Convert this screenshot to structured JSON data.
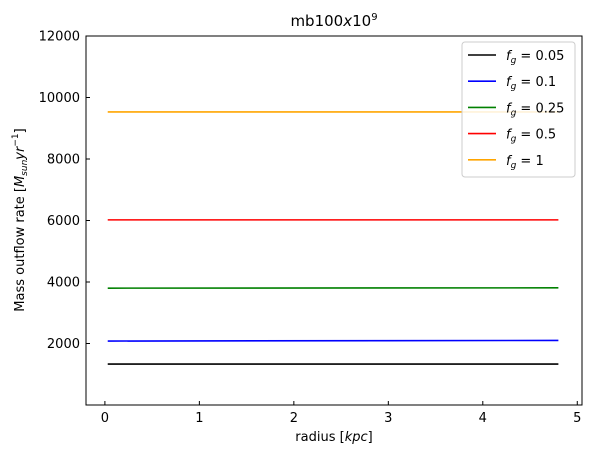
{
  "chart_data": {
    "type": "line",
    "title_base": "mb100",
    "title_italic": "x",
    "title_num": "10",
    "title_exp": "9",
    "xlabel_prefix": "radius [",
    "xlabel_unit": "kpc",
    "xlabel_suffix": "]",
    "ylabel_prefix": "Mass outflow rate [",
    "ylabel_unit_sub": "sun",
    "ylabel_unit_yr": "yr",
    "ylabel_exp": "−1",
    "xlim": [
      -0.2,
      5.05
    ],
    "ylim": [
      0,
      12000
    ],
    "xticks": [
      0,
      1,
      2,
      3,
      4,
      5
    ],
    "yticks": [
      2000,
      4000,
      6000,
      8000,
      10000,
      12000
    ],
    "grid": false,
    "legend_position": "top-right",
    "series": [
      {
        "name": "f_g = 0.05",
        "legend_value": "0.05",
        "color": "#000000",
        "x": [
          0.03,
          4.8
        ],
        "y": [
          1330,
          1330
        ]
      },
      {
        "name": "f_g = 0.1",
        "legend_value": "0.1",
        "color": "#0000ff",
        "x": [
          0.03,
          4.8
        ],
        "y": [
          2080,
          2100
        ]
      },
      {
        "name": "f_g = 0.25",
        "legend_value": "0.25",
        "color": "#008000",
        "x": [
          0.03,
          4.8
        ],
        "y": [
          3800,
          3810
        ]
      },
      {
        "name": "f_g = 0.5",
        "legend_value": "0.5",
        "color": "#ff0000",
        "x": [
          0.03,
          4.8
        ],
        "y": [
          6020,
          6020
        ]
      },
      {
        "name": "f_g = 1",
        "legend_value": "1",
        "color": "#ffa500",
        "x": [
          0.03,
          4.8
        ],
        "y": [
          9530,
          9530
        ]
      }
    ]
  }
}
